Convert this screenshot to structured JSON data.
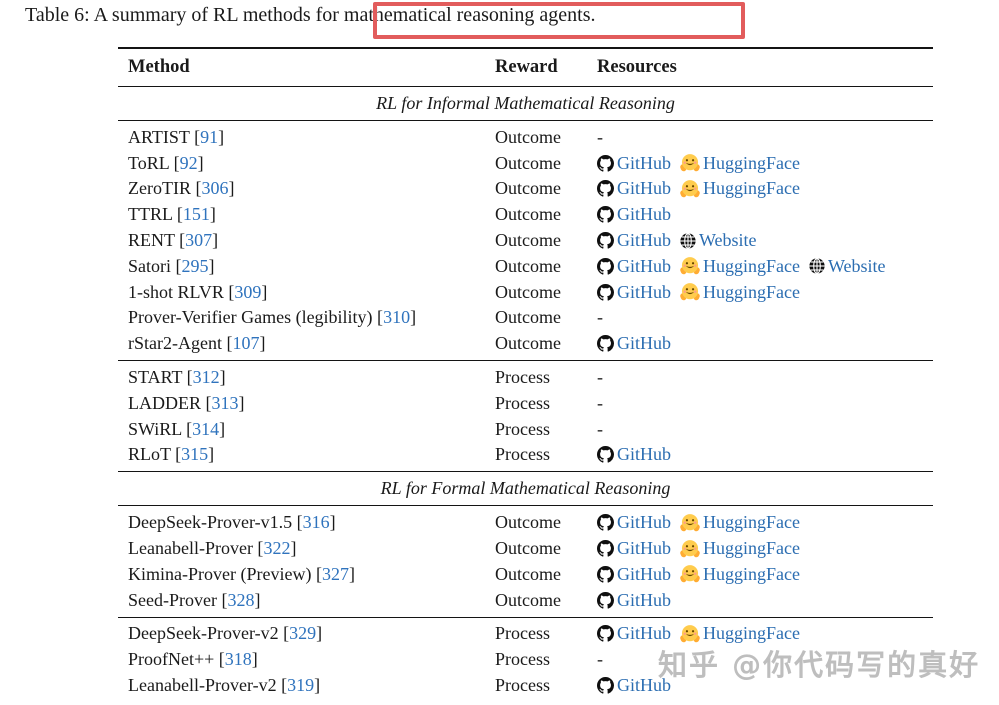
{
  "caption": {
    "text": "Table 6: A summary of RL methods for mathematical reasoning agents."
  },
  "annotation": {
    "type": "red-highlight-box",
    "color": "#e25c5c"
  },
  "watermark": {
    "text": "知乎 @你代码写的真好"
  },
  "colors": {
    "link_blue": "#2b6db1",
    "citation_blue": "#2f73bd",
    "annotation_red": "#e25c5c",
    "text": "#1a1a1a"
  },
  "table": {
    "columns": {
      "method": "Method",
      "reward": "Reward",
      "resources": "Resources"
    },
    "empty_marker": "-",
    "cite_open": " [",
    "cite_close": "]",
    "links": {
      "github": "GitHub",
      "huggingface": "HuggingFace",
      "website": "Website"
    },
    "sections": [
      {
        "title": "RL for Informal Mathematical Reasoning",
        "groups": [
          {
            "rows": [
              {
                "method": "ARTIST",
                "cite": "91",
                "reward": "Outcome",
                "resources": []
              },
              {
                "method": "ToRL",
                "cite": "92",
                "reward": "Outcome",
                "resources": [
                  "github",
                  "huggingface"
                ]
              },
              {
                "method": "ZeroTIR",
                "cite": "306",
                "reward": "Outcome",
                "resources": [
                  "github",
                  "huggingface"
                ]
              },
              {
                "method": "TTRL",
                "cite": "151",
                "reward": "Outcome",
                "resources": [
                  "github"
                ]
              },
              {
                "method": "RENT",
                "cite": "307",
                "reward": "Outcome",
                "resources": [
                  "github",
                  "website"
                ]
              },
              {
                "method": "Satori",
                "cite": "295",
                "reward": "Outcome",
                "resources": [
                  "github",
                  "huggingface",
                  "website"
                ]
              },
              {
                "method": "1-shot RLVR",
                "cite": "309",
                "reward": "Outcome",
                "resources": [
                  "github",
                  "huggingface"
                ]
              },
              {
                "method": "Prover-Verifier Games (legibility)",
                "cite": "310",
                "reward": "Outcome",
                "resources": []
              },
              {
                "method": "rStar2-Agent",
                "cite": "107",
                "reward": "Outcome",
                "resources": [
                  "github"
                ]
              }
            ]
          },
          {
            "rows": [
              {
                "method": "START",
                "cite": "312",
                "reward": "Process",
                "resources": []
              },
              {
                "method": "LADDER",
                "cite": "313",
                "reward": "Process",
                "resources": []
              },
              {
                "method": "SWiRL",
                "cite": "314",
                "reward": "Process",
                "resources": []
              },
              {
                "method": "RLoT",
                "cite": "315",
                "reward": "Process",
                "resources": [
                  "github"
                ]
              }
            ]
          }
        ]
      },
      {
        "title": "RL for Formal Mathematical Reasoning",
        "groups": [
          {
            "rows": [
              {
                "method": "DeepSeek-Prover-v1.5",
                "cite": "316",
                "reward": "Outcome",
                "resources": [
                  "github",
                  "huggingface"
                ]
              },
              {
                "method": "Leanabell-Prover",
                "cite": "322",
                "reward": "Outcome",
                "resources": [
                  "github",
                  "huggingface"
                ]
              },
              {
                "method": "Kimina-Prover (Preview)",
                "cite": "327",
                "reward": "Outcome",
                "resources": [
                  "github",
                  "huggingface"
                ]
              },
              {
                "method": "Seed-Prover",
                "cite": "328",
                "reward": "Outcome",
                "resources": [
                  "github"
                ]
              }
            ]
          },
          {
            "rows": [
              {
                "method": "DeepSeek-Prover-v2",
                "cite": "329",
                "reward": "Process",
                "resources": [
                  "github",
                  "huggingface"
                ]
              },
              {
                "method": "ProofNet++",
                "cite": "318",
                "reward": "Process",
                "resources": []
              },
              {
                "method": "Leanabell-Prover-v2",
                "cite": "319",
                "reward": "Process",
                "resources": [
                  "github"
                ]
              }
            ]
          }
        ]
      }
    ]
  }
}
